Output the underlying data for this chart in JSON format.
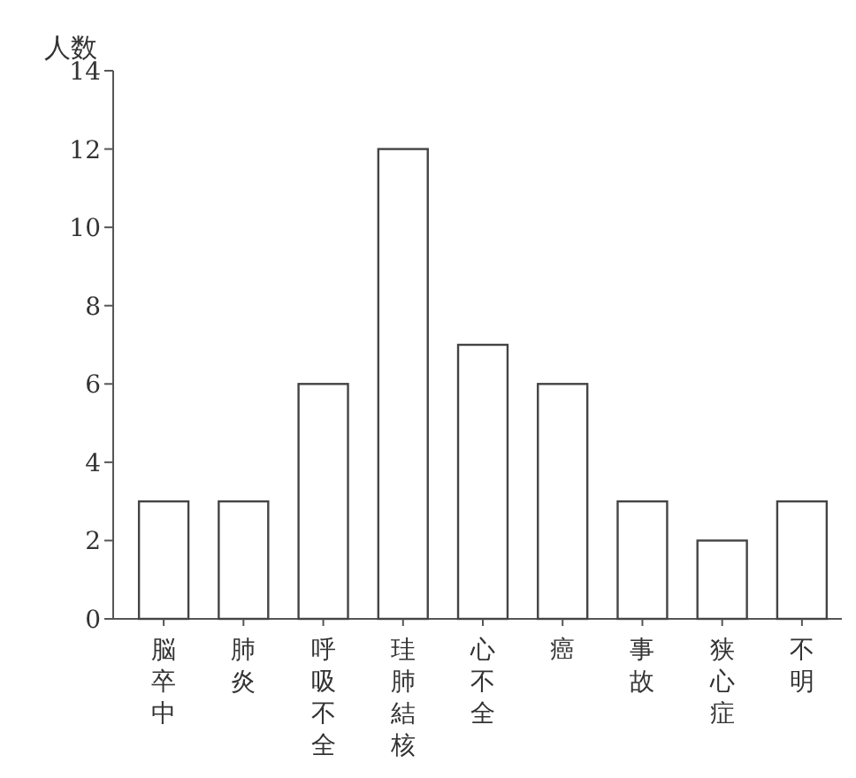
{
  "chart_data": {
    "type": "bar",
    "ylabel": "人数",
    "categories": [
      "脳卒中",
      "肺炎",
      "呼吸不全",
      "珪肺結核",
      "心不全",
      "癌",
      "事故",
      "狭心症",
      "不明"
    ],
    "values": [
      3,
      3,
      6,
      12,
      7,
      6,
      3,
      2,
      3
    ],
    "color": "#ffffff",
    "ylim": [
      0,
      14
    ],
    "yticks": [
      0,
      2,
      4,
      6,
      8,
      10,
      12,
      14
    ],
    "grid": false
  }
}
